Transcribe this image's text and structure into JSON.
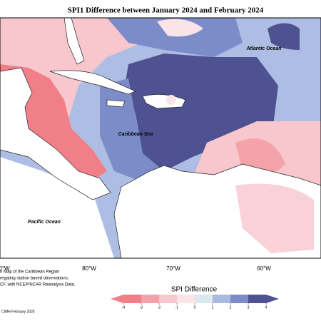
{
  "title": "SPI1 Difference between January 2024 and February 2024",
  "map": {
    "labels": [
      "Atlantic Ocean",
      "Caribbean Sea",
      "Pacific Ocean"
    ],
    "lon_labels": [
      "0°W",
      "80°W",
      "70°W",
      "60°W"
    ]
  },
  "colorbar": {
    "title": "SPI Difference",
    "ticks": [
      -4,
      -3,
      -2,
      -1,
      0,
      1,
      2,
      3,
      4
    ],
    "colors": [
      "#f07f87",
      "#f4a3aa",
      "#f8c7cd",
      "#fbe4e7",
      "#dce8ef",
      "#aab9e0",
      "#7c8cc8",
      "#4f5290"
    ]
  },
  "footnote": [
    "n Map of the Caribbean Region",
    "regating station based observations,",
    "CF, with NCEP/NCAR Reanalysis Data.",
    "CIMH February 2024"
  ]
}
